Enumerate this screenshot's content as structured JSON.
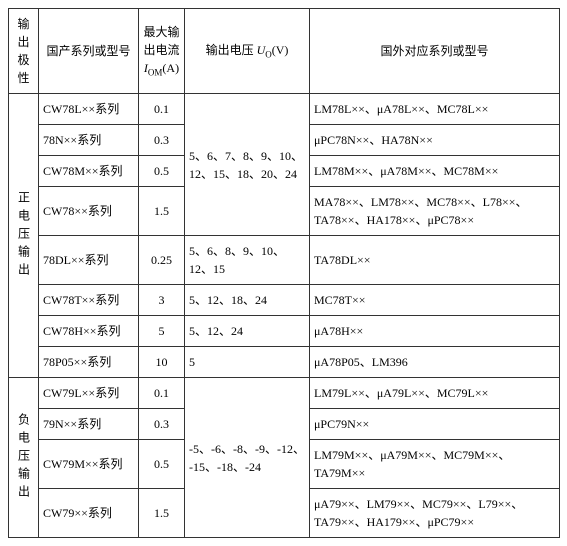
{
  "headers": {
    "polarity": "输出极性",
    "domestic": "国产系列或型号",
    "current_l1": "最大输",
    "current_l2": "出电流",
    "current_l3": "I",
    "current_sub": "OM",
    "current_l4": "(A)",
    "voltage_pre": "输出电压 ",
    "voltage_sym": "U",
    "voltage_sub": "O",
    "voltage_post": "(V)",
    "foreign": "国外对应系列或型号"
  },
  "pos_label": "正电压输出",
  "pos": [
    {
      "dom": "CW78L××系列",
      "cur": "0.1",
      "for": "LM78L××、μA78L××、MC78L××"
    },
    {
      "dom": "78N××系列",
      "cur": "0.3",
      "for": "μPC78N××、HA78N××"
    },
    {
      "dom": "CW78M××系列",
      "cur": "0.5",
      "for": "LM78M××、μA78M××、MC78M××"
    },
    {
      "dom": "CW78××系列",
      "cur": "1.5",
      "for": "MA78××、LM78××、MC78××、L78××、TA78××、HA178××、μPC78××"
    },
    {
      "dom": "78DL××系列",
      "cur": "0.25",
      "for": "TA78DL××"
    },
    {
      "dom": "CW78T××系列",
      "cur": "3",
      "for": "MC78T××"
    },
    {
      "dom": "CW78H××系列",
      "cur": "5",
      "for": "μA78H××"
    },
    {
      "dom": "78P05××系列",
      "cur": "10",
      "for": "μA78P05、LM396"
    }
  ],
  "pos_volt_a": "5、6、7、8、9、10、12、15、18、20、24",
  "pos_volt_b": "5、6、8、9、10、12、15",
  "pos_volt_c": "5、12、18、24",
  "pos_volt_d": "5、12、24",
  "pos_volt_e": "5",
  "neg_label": "负电压输出",
  "neg": [
    {
      "dom": "CW79L××系列",
      "cur": "0.1",
      "for": "LM79L××、μA79L××、MC79L××"
    },
    {
      "dom": "79N××系列",
      "cur": "0.3",
      "for": "μPC79N××"
    },
    {
      "dom": "CW79M××系列",
      "cur": "0.5",
      "for": "LM79M××、μA79M××、MC79M××、TA79M××"
    },
    {
      "dom": "CW79××系列",
      "cur": "1.5",
      "for": "μA79××、LM79××、MC79××、L79××、TA79××、HA179××、μPC79××"
    }
  ],
  "neg_volt": "-5、-6、-8、-9、-12、-15、-18、-24"
}
